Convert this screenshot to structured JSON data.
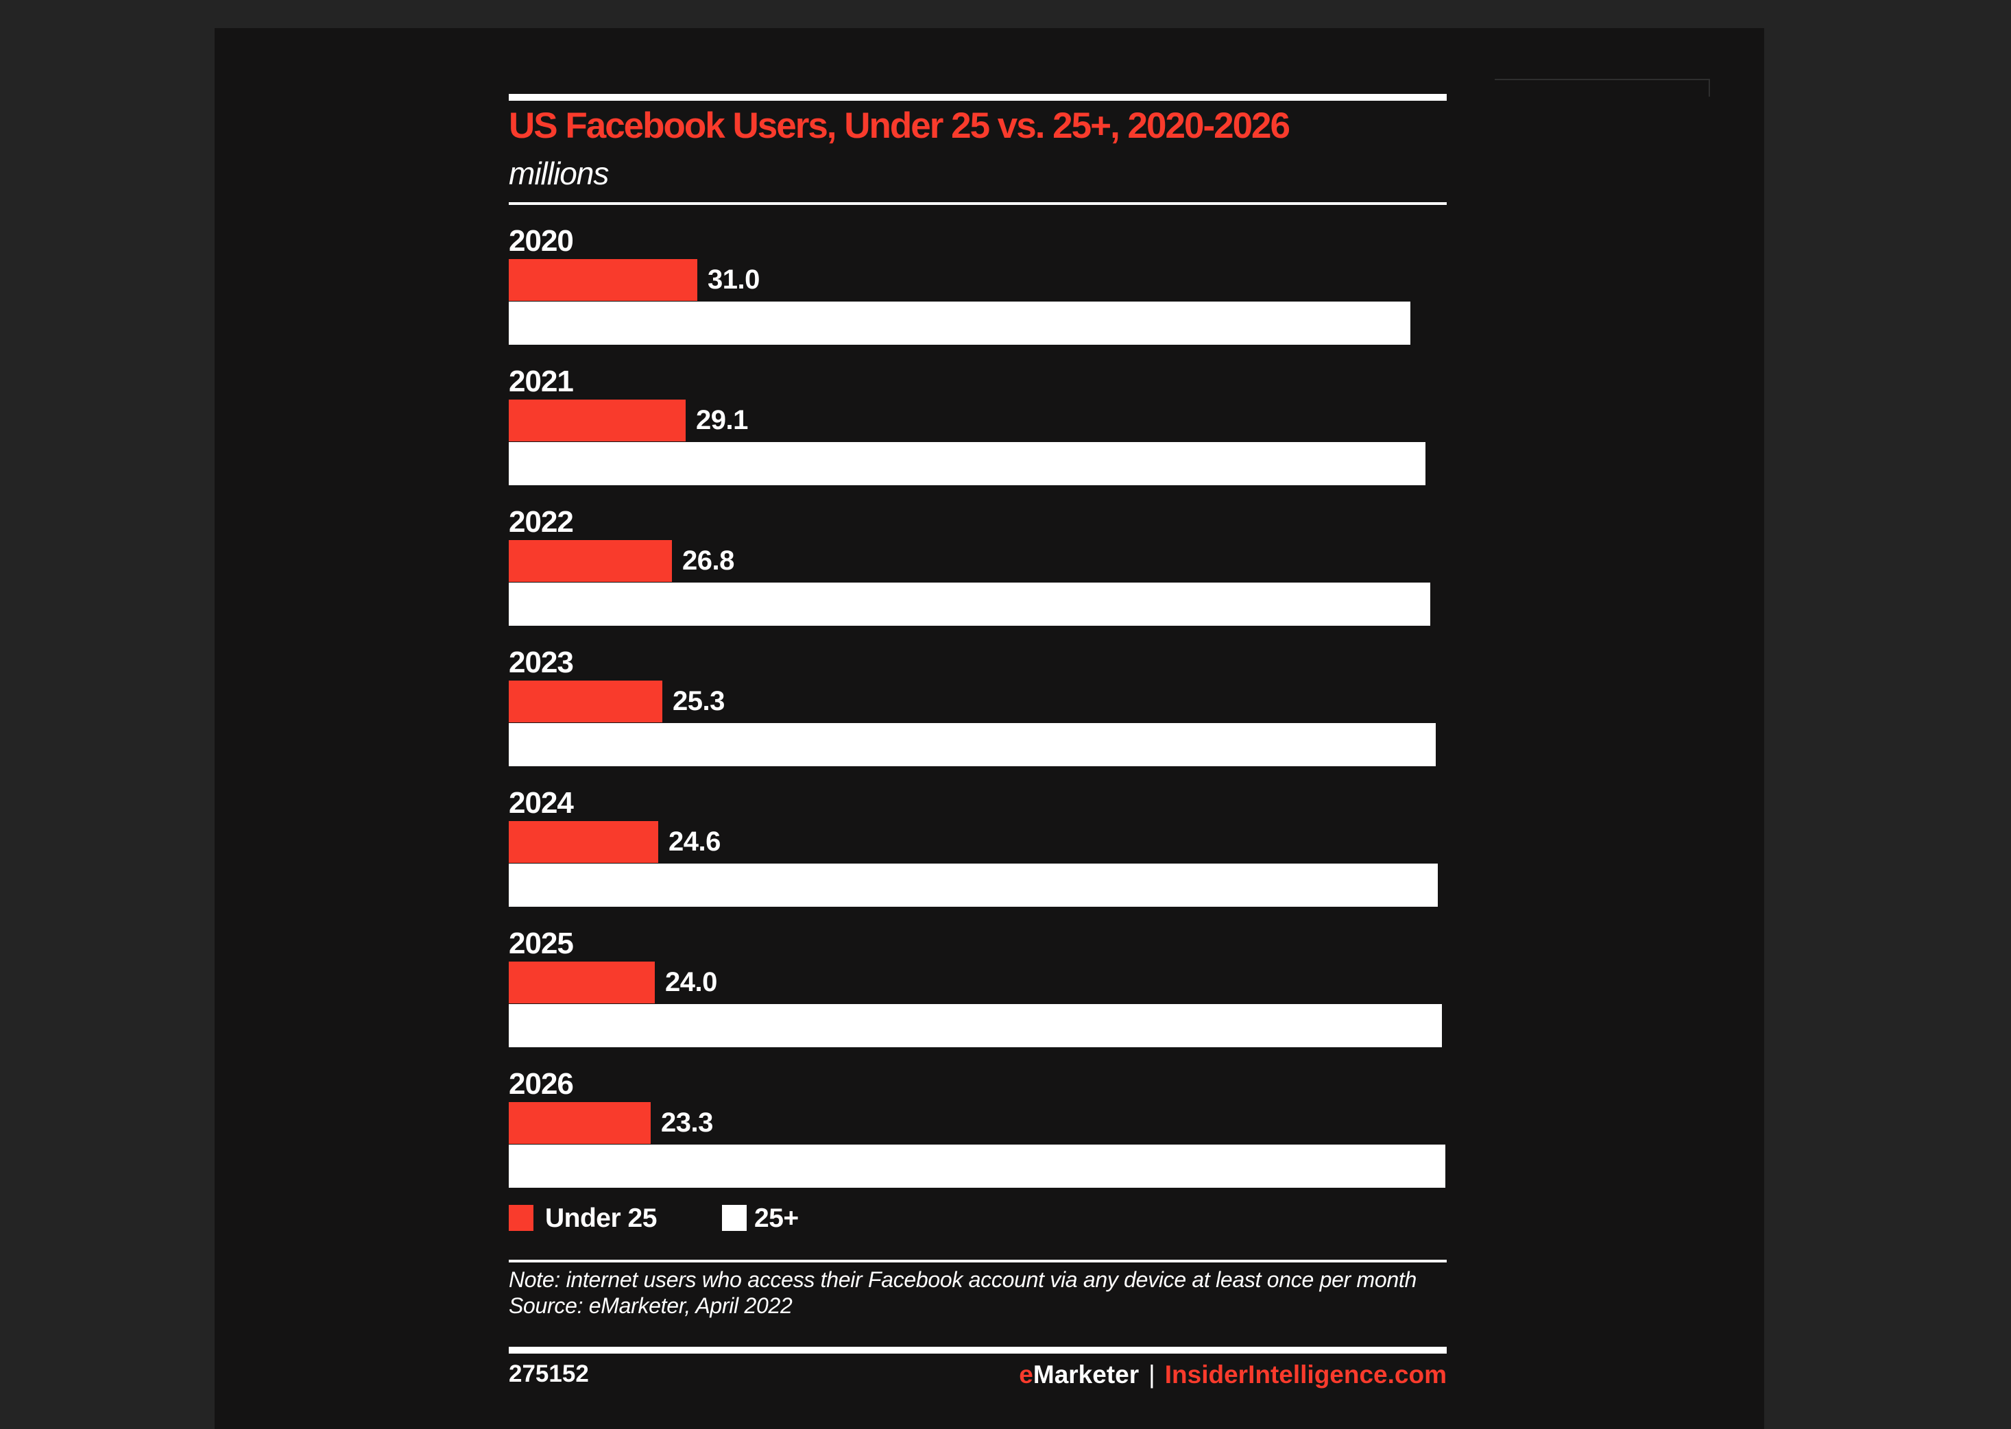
{
  "header": {
    "title": "US Facebook Users, Under 25 vs. 25+, 2020-2026",
    "unit_label": "millions"
  },
  "chart_data": {
    "type": "bar",
    "orientation": "horizontal",
    "unit": "millions",
    "title": "US Facebook Users, Under 25 vs. 25+, 2020-2026",
    "categories": [
      "2020",
      "2021",
      "2022",
      "2023",
      "2024",
      "2025",
      "2026"
    ],
    "series": [
      {
        "name": "Under 25",
        "color": "#f93b2c",
        "values": [
          31.0,
          29.1,
          26.8,
          25.3,
          24.6,
          24.0,
          23.3
        ],
        "value_labels": [
          "31.0",
          "29.1",
          "26.8",
          "25.3",
          "24.6",
          "24.0",
          "23.3"
        ],
        "labels_shown": true
      },
      {
        "name": "25+",
        "color": "#ffffff",
        "values": [
          148.2,
          150.7,
          151.5,
          152.4,
          152.8,
          153.4,
          154.0
        ],
        "labels_shown": false,
        "values_estimated_from_bar_lengths": true
      }
    ],
    "xlim": [
      0,
      154.2
    ],
    "grid": false,
    "legend_position": "bottom"
  },
  "legend": {
    "items": [
      {
        "label": "Under 25",
        "color": "#f93b2c"
      },
      {
        "label": "25+",
        "color": "#ffffff"
      }
    ]
  },
  "notes": {
    "note": "Note: internet users who access their Facebook account via any device at least once per month",
    "source": "Source: eMarketer, April 2022"
  },
  "footer": {
    "chart_id": "275152",
    "brand_e": "e",
    "brand_rest": "Marketer",
    "brand_divider": "|",
    "brand_site": "InsiderIntelligence.com"
  },
  "colors": {
    "accent_red": "#f93b2c",
    "bar_white": "#ffffff",
    "card_bg": "#141313",
    "page_bg": "#242424",
    "corner_line": "#2e2e2e"
  }
}
